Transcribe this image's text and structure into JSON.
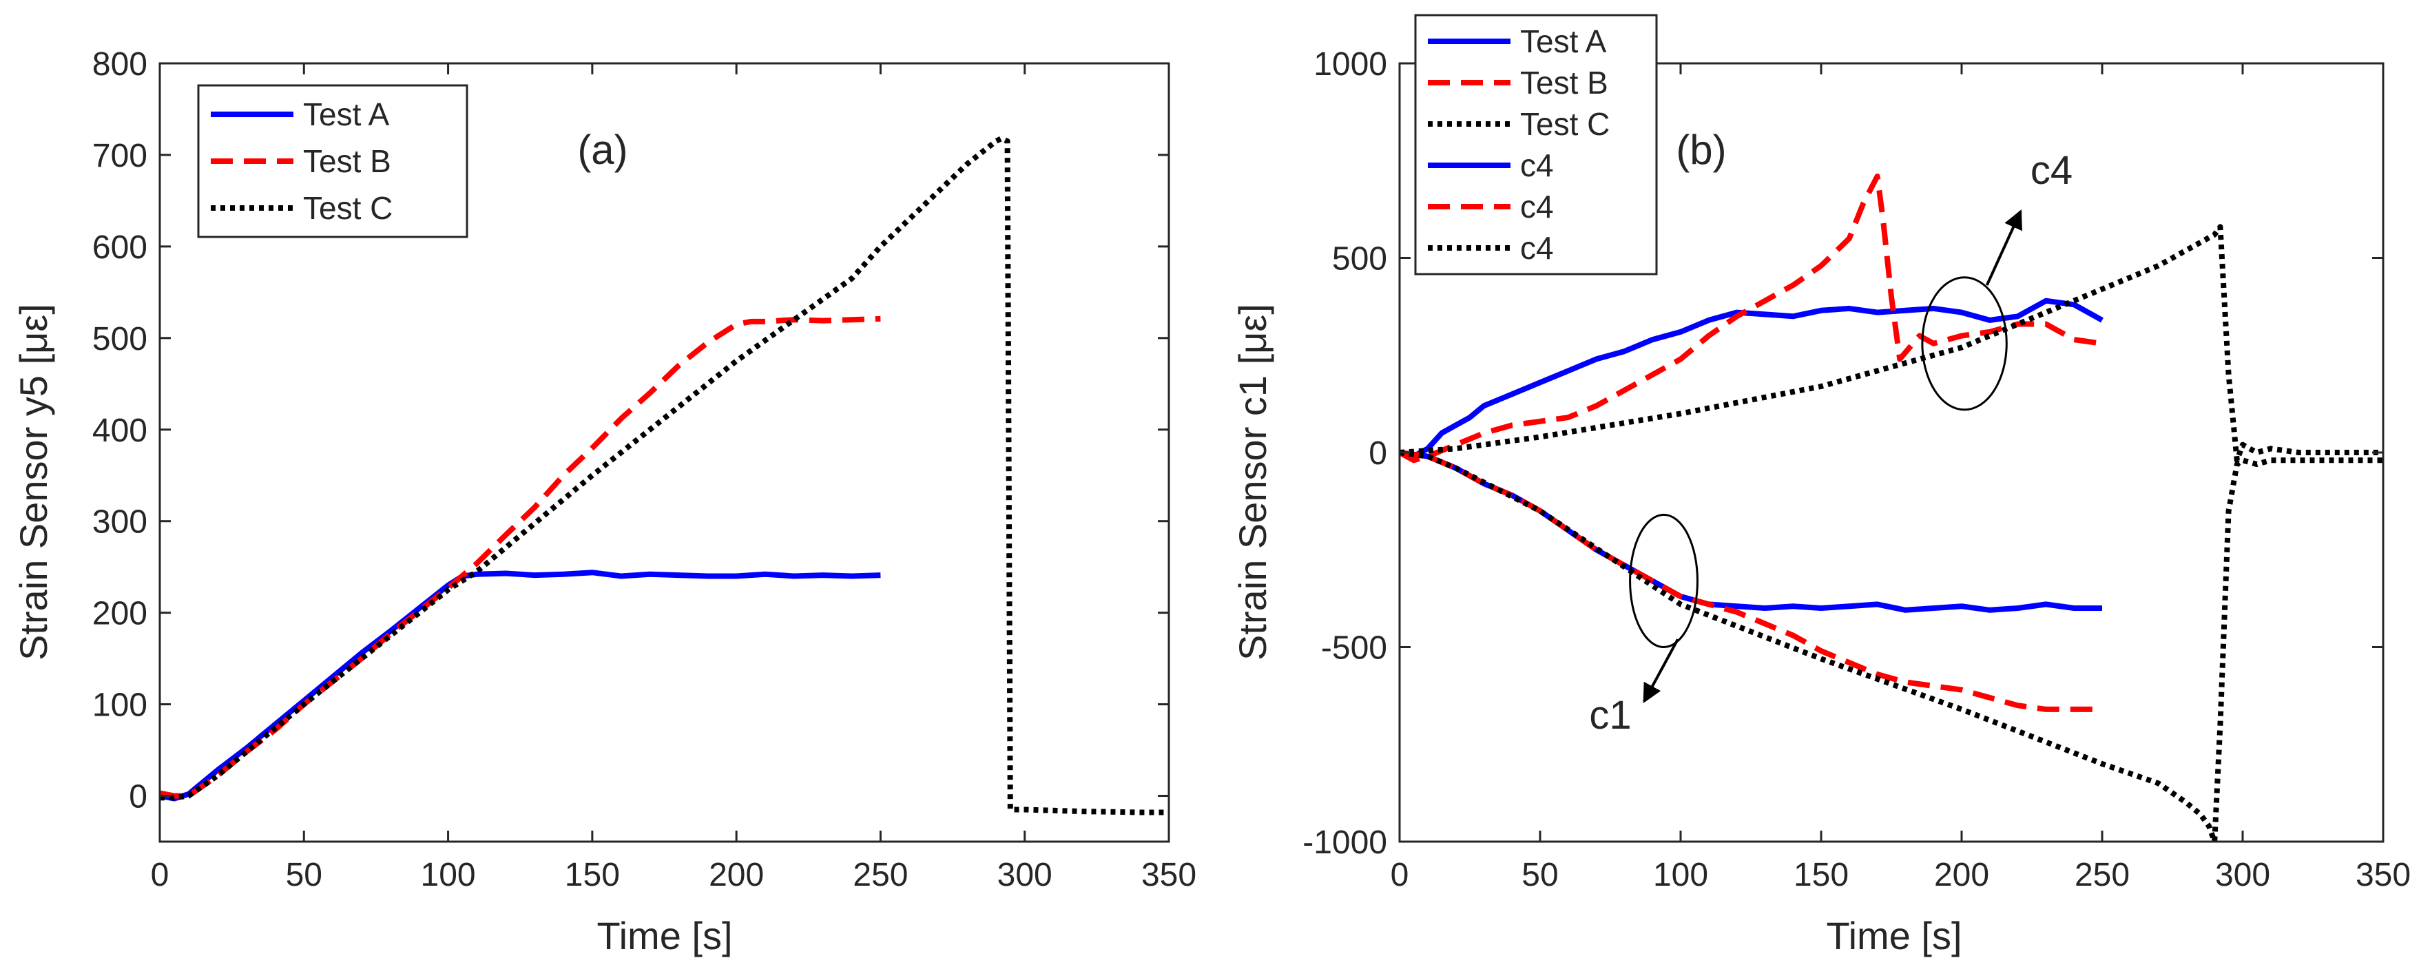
{
  "chart_data": [
    {
      "type": "line",
      "panel_label": "(a)",
      "xlabel": "Time [s]",
      "ylabel": "Strain Sensor y5 [με]",
      "xlim": [
        0,
        350
      ],
      "ylim": [
        -50,
        800
      ],
      "xticks": [
        0,
        50,
        100,
        150,
        200,
        250,
        300,
        350
      ],
      "yticks": [
        0,
        100,
        200,
        300,
        400,
        500,
        600,
        700,
        800
      ],
      "legend": {
        "placement": "top-left",
        "entries": [
          "Test A",
          "Test B",
          "Test C"
        ]
      },
      "series": [
        {
          "name": "Test A",
          "color": "#0000ff",
          "style": "solid",
          "x": [
            0,
            5,
            10,
            20,
            30,
            40,
            50,
            60,
            70,
            80,
            90,
            100,
            105,
            110,
            120,
            130,
            140,
            150,
            160,
            170,
            180,
            190,
            200,
            210,
            220,
            230,
            240,
            250
          ],
          "y": [
            0,
            -3,
            2,
            28,
            52,
            78,
            104,
            130,
            156,
            180,
            205,
            230,
            240,
            242,
            243,
            241,
            242,
            244,
            240,
            242,
            241,
            240,
            240,
            242,
            240,
            241,
            240,
            241
          ]
        },
        {
          "name": "Test B",
          "color": "#ff0000",
          "style": "dashed",
          "x": [
            0,
            5,
            10,
            20,
            30,
            40,
            50,
            60,
            70,
            80,
            90,
            100,
            110,
            120,
            130,
            140,
            150,
            160,
            170,
            180,
            190,
            200,
            205,
            210,
            220,
            230,
            240,
            250
          ],
          "y": [
            3,
            0,
            0,
            22,
            48,
            72,
            100,
            125,
            150,
            177,
            202,
            227,
            254,
            285,
            315,
            350,
            380,
            412,
            440,
            470,
            495,
            515,
            518,
            518,
            520,
            519,
            520,
            521
          ]
        },
        {
          "name": "Test C",
          "color": "#000000",
          "style": "dotted",
          "x": [
            0,
            5,
            10,
            20,
            50,
            80,
            100,
            110,
            150,
            200,
            240,
            250,
            260,
            270,
            280,
            290,
            292,
            294,
            295,
            300,
            320,
            340,
            350
          ],
          "y": [
            -2,
            -2,
            0,
            22,
            100,
            175,
            225,
            245,
            350,
            475,
            565,
            600,
            630,
            660,
            690,
            715,
            718,
            715,
            -15,
            -15,
            -17,
            -18,
            -18
          ]
        }
      ]
    },
    {
      "type": "line",
      "panel_label": "(b)",
      "xlabel": "Time [s]",
      "ylabel": "Strain Sensor c1 [με]",
      "xlim": [
        0,
        350
      ],
      "ylim": [
        -1000,
        1000
      ],
      "xticks": [
        0,
        50,
        100,
        150,
        200,
        250,
        300,
        350
      ],
      "yticks": [
        -1000,
        -500,
        0,
        500,
        1000
      ],
      "legend": {
        "placement": "top-left",
        "entries": [
          "Test A",
          "Test B",
          "Test C",
          "c4",
          "c4",
          "c4"
        ]
      },
      "annotations": [
        {
          "text": "c4",
          "x": 232,
          "y": 690,
          "arrow_to": [
            217,
            630
          ]
        },
        {
          "text": "c1",
          "x": 75,
          "y": -710,
          "arrow_to": [
            95,
            -670
          ]
        }
      ],
      "ellipses": [
        {
          "cx": 201,
          "cy": 280,
          "rx": 15,
          "ry": 170
        },
        {
          "cx": 94,
          "cy": -330,
          "rx": 12,
          "ry": 170
        }
      ],
      "series": [
        {
          "name": "Test A",
          "color": "#0000ff",
          "style": "solid",
          "x": [
            0,
            5,
            10,
            15,
            20,
            25,
            30,
            40,
            50,
            60,
            70,
            80,
            90,
            100,
            110,
            120,
            130,
            140,
            150,
            160,
            170,
            180,
            190,
            200,
            210,
            220,
            230,
            240,
            250
          ],
          "y": [
            0,
            -10,
            10,
            50,
            70,
            90,
            120,
            150,
            180,
            210,
            240,
            260,
            290,
            310,
            340,
            360,
            355,
            350,
            365,
            370,
            360,
            365,
            370,
            360,
            340,
            350,
            390,
            380,
            340
          ]
        },
        {
          "name": "Test B",
          "color": "#ff0000",
          "style": "dashed",
          "x": [
            0,
            5,
            10,
            20,
            30,
            40,
            50,
            60,
            70,
            80,
            90,
            100,
            110,
            120,
            130,
            140,
            150,
            160,
            165,
            170,
            172,
            175,
            178,
            185,
            190,
            200,
            210,
            220,
            230,
            240,
            250
          ],
          "y": [
            0,
            -20,
            -10,
            20,
            50,
            70,
            80,
            90,
            120,
            160,
            200,
            240,
            300,
            350,
            390,
            430,
            480,
            550,
            640,
            710,
            600,
            400,
            240,
            300,
            280,
            300,
            310,
            330,
            330,
            290,
            280
          ]
        },
        {
          "name": "Test C",
          "color": "#000000",
          "style": "dotted",
          "x": [
            0,
            10,
            20,
            50,
            100,
            150,
            200,
            250,
            270,
            280,
            285,
            290,
            292,
            295,
            298,
            300,
            305,
            310,
            320,
            330,
            340,
            350
          ],
          "y": [
            0,
            5,
            10,
            40,
            100,
            170,
            270,
            420,
            480,
            520,
            540,
            560,
            580,
            200,
            -20,
            20,
            0,
            10,
            0,
            0,
            0,
            0
          ]
        },
        {
          "name": "c4",
          "color": "#0000ff",
          "style": "solid",
          "x": [
            0,
            10,
            20,
            30,
            40,
            50,
            60,
            70,
            80,
            90,
            100,
            110,
            120,
            130,
            140,
            150,
            160,
            170,
            180,
            190,
            200,
            210,
            220,
            230,
            240,
            250
          ],
          "y": [
            0,
            -10,
            -40,
            -80,
            -110,
            -150,
            -200,
            -250,
            -290,
            -330,
            -370,
            -390,
            -395,
            -400,
            -395,
            -400,
            -395,
            -390,
            -405,
            -400,
            -395,
            -405,
            -400,
            -390,
            -400,
            -400
          ]
        },
        {
          "name": "c4",
          "color": "#ff0000",
          "style": "dashed",
          "x": [
            0,
            10,
            20,
            30,
            40,
            50,
            60,
            70,
            80,
            90,
            100,
            110,
            120,
            130,
            140,
            150,
            160,
            170,
            180,
            190,
            200,
            210,
            220,
            230,
            240,
            250
          ],
          "y": [
            0,
            -10,
            -40,
            -80,
            -110,
            -150,
            -200,
            -250,
            -290,
            -330,
            -370,
            -390,
            -410,
            -440,
            -470,
            -510,
            -540,
            -570,
            -590,
            -600,
            -610,
            -630,
            -650,
            -660,
            -660,
            -660
          ]
        },
        {
          "name": "c4",
          "color": "#000000",
          "style": "dotted",
          "x": [
            0,
            10,
            20,
            50,
            100,
            150,
            200,
            250,
            270,
            280,
            285,
            288,
            290,
            292,
            295,
            298,
            300,
            305,
            310,
            320,
            330,
            340,
            350
          ],
          "y": [
            0,
            -10,
            -40,
            -150,
            -390,
            -530,
            -660,
            -800,
            -850,
            -900,
            -930,
            -960,
            -1000,
            -700,
            -150,
            -30,
            -20,
            -30,
            -20,
            -20,
            -20,
            -20,
            -20
          ]
        }
      ]
    }
  ]
}
